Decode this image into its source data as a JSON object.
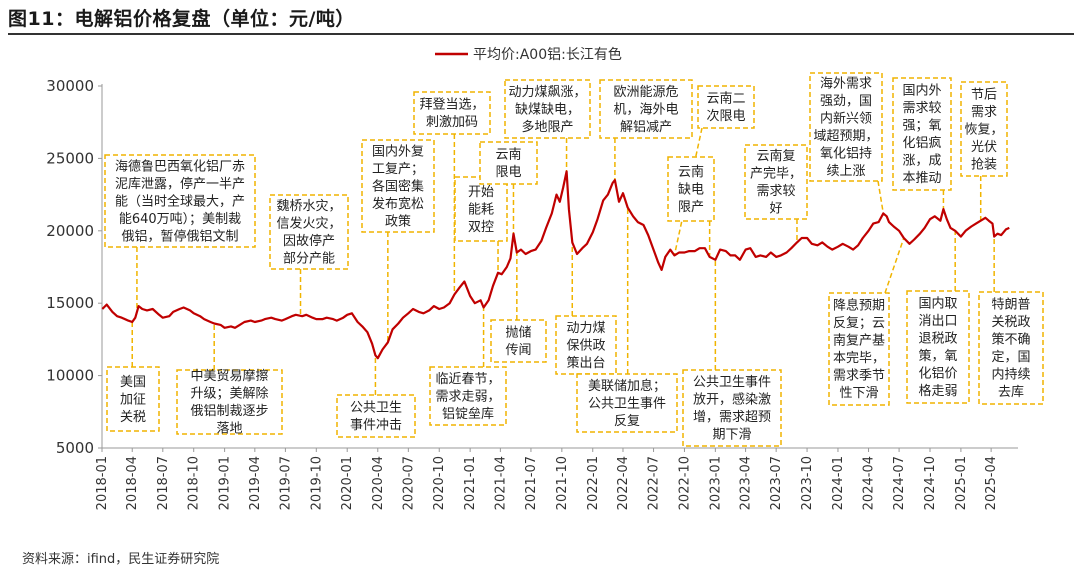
{
  "title": "图11：电解铝价格复盘（单位：元/吨）",
  "source": "资料来源：ifind，民生证券研究院",
  "colors": {
    "series": "#c00000",
    "annotation_border": "#f0b400",
    "axis": "#999999"
  },
  "chart_data": {
    "type": "line",
    "grid": false,
    "legend_position": "top-center",
    "ylim": [
      5000,
      30000
    ],
    "yticks": [
      "5000",
      "10000",
      "15000",
      "20000",
      "25000",
      "30000"
    ],
    "xticks": [
      "2018-01",
      "2018-04",
      "2018-07",
      "2018-10",
      "2019-01",
      "2019-04",
      "2019-07",
      "2019-10",
      "2020-01",
      "2020-04",
      "2020-07",
      "2020-10",
      "2021-01",
      "2021-04",
      "2021-07",
      "2021-10",
      "2022-01",
      "2022-04",
      "2022-07",
      "2022-10",
      "2023-01",
      "2023-04",
      "2023-07",
      "2023-10",
      "2024-01",
      "2024-04",
      "2024-07",
      "2024-10",
      "2025-01",
      "2025-04"
    ],
    "series": [
      {
        "name": "平均价:A00铝:长江有色",
        "color": "#c00000",
        "points": [
          [
            "2018-01-02",
            14600
          ],
          [
            "2018-01-15",
            14900
          ],
          [
            "2018-02-01",
            14400
          ],
          [
            "2018-02-15",
            14100
          ],
          [
            "2018-03-01",
            14000
          ],
          [
            "2018-03-20",
            13800
          ],
          [
            "2018-04-01",
            13700
          ],
          [
            "2018-04-10",
            14000
          ],
          [
            "2018-04-20",
            14800
          ],
          [
            "2018-05-01",
            14600
          ],
          [
            "2018-05-15",
            14500
          ],
          [
            "2018-06-01",
            14600
          ],
          [
            "2018-06-20",
            14200
          ],
          [
            "2018-07-01",
            14000
          ],
          [
            "2018-07-20",
            14100
          ],
          [
            "2018-08-01",
            14400
          ],
          [
            "2018-08-20",
            14600
          ],
          [
            "2018-09-01",
            14700
          ],
          [
            "2018-09-20",
            14500
          ],
          [
            "2018-10-01",
            14300
          ],
          [
            "2018-10-20",
            14100
          ],
          [
            "2018-11-01",
            13900
          ],
          [
            "2018-11-20",
            13700
          ],
          [
            "2018-12-01",
            13600
          ],
          [
            "2018-12-20",
            13500
          ],
          [
            "2019-01-01",
            13300
          ],
          [
            "2019-01-20",
            13400
          ],
          [
            "2019-02-01",
            13300
          ],
          [
            "2019-02-15",
            13500
          ],
          [
            "2019-03-01",
            13700
          ],
          [
            "2019-03-20",
            13800
          ],
          [
            "2019-04-01",
            13700
          ],
          [
            "2019-04-20",
            13800
          ],
          [
            "2019-05-01",
            13900
          ],
          [
            "2019-05-20",
            14000
          ],
          [
            "2019-06-01",
            13900
          ],
          [
            "2019-06-20",
            13800
          ],
          [
            "2019-07-01",
            13900
          ],
          [
            "2019-07-20",
            14100
          ],
          [
            "2019-08-01",
            14200
          ],
          [
            "2019-08-20",
            14100
          ],
          [
            "2019-09-01",
            14200
          ],
          [
            "2019-09-20",
            14000
          ],
          [
            "2019-10-01",
            13900
          ],
          [
            "2019-10-20",
            13900
          ],
          [
            "2019-11-01",
            14000
          ],
          [
            "2019-11-20",
            13900
          ],
          [
            "2019-12-01",
            13800
          ],
          [
            "2019-12-20",
            14000
          ],
          [
            "2020-01-01",
            14200
          ],
          [
            "2020-01-15",
            14300
          ],
          [
            "2020-02-01",
            13700
          ],
          [
            "2020-02-15",
            13400
          ],
          [
            "2020-03-01",
            13000
          ],
          [
            "2020-03-15",
            12200
          ],
          [
            "2020-03-25",
            11400
          ],
          [
            "2020-04-01",
            11200
          ],
          [
            "2020-04-15",
            11800
          ],
          [
            "2020-05-01",
            12300
          ],
          [
            "2020-05-15",
            13200
          ],
          [
            "2020-06-01",
            13600
          ],
          [
            "2020-06-15",
            14000
          ],
          [
            "2020-07-01",
            14300
          ],
          [
            "2020-07-15",
            14600
          ],
          [
            "2020-08-01",
            14400
          ],
          [
            "2020-08-15",
            14300
          ],
          [
            "2020-09-01",
            14500
          ],
          [
            "2020-09-15",
            14800
          ],
          [
            "2020-10-01",
            14600
          ],
          [
            "2020-10-15",
            14700
          ],
          [
            "2020-11-01",
            15000
          ],
          [
            "2020-11-15",
            15600
          ],
          [
            "2020-12-01",
            16100
          ],
          [
            "2020-12-15",
            16500
          ],
          [
            "2021-01-01",
            15500
          ],
          [
            "2021-01-15",
            15000
          ],
          [
            "2021-02-01",
            15200
          ],
          [
            "2021-02-10",
            14700
          ],
          [
            "2021-02-25",
            15200
          ],
          [
            "2021-03-10",
            16200
          ],
          [
            "2021-03-25",
            17100
          ],
          [
            "2021-04-05",
            17000
          ],
          [
            "2021-04-20",
            17500
          ],
          [
            "2021-05-01",
            18100
          ],
          [
            "2021-05-10",
            19800
          ],
          [
            "2021-05-20",
            18500
          ],
          [
            "2021-06-01",
            18700
          ],
          [
            "2021-06-15",
            18400
          ],
          [
            "2021-07-01",
            18600
          ],
          [
            "2021-07-15",
            18700
          ],
          [
            "2021-08-01",
            19300
          ],
          [
            "2021-08-15",
            20200
          ],
          [
            "2021-09-01",
            21200
          ],
          [
            "2021-09-15",
            22500
          ],
          [
            "2021-09-25",
            22000
          ],
          [
            "2021-10-05",
            23000
          ],
          [
            "2021-10-15",
            24100
          ],
          [
            "2021-10-22",
            21500
          ],
          [
            "2021-11-01",
            19200
          ],
          [
            "2021-11-15",
            18400
          ],
          [
            "2021-12-01",
            18800
          ],
          [
            "2021-12-15",
            19100
          ],
          [
            "2022-01-01",
            19900
          ],
          [
            "2022-01-15",
            20800
          ],
          [
            "2022-02-01",
            22100
          ],
          [
            "2022-02-15",
            22500
          ],
          [
            "2022-03-01",
            23300
          ],
          [
            "2022-03-08",
            23500
          ],
          [
            "2022-03-20",
            22000
          ],
          [
            "2022-04-01",
            22600
          ],
          [
            "2022-04-15",
            21600
          ],
          [
            "2022-05-01",
            21000
          ],
          [
            "2022-05-15",
            20600
          ],
          [
            "2022-06-01",
            20400
          ],
          [
            "2022-06-15",
            19700
          ],
          [
            "2022-07-01",
            18700
          ],
          [
            "2022-07-15",
            17800
          ],
          [
            "2022-07-25",
            17300
          ],
          [
            "2022-08-05",
            18200
          ],
          [
            "2022-08-20",
            18700
          ],
          [
            "2022-09-01",
            18300
          ],
          [
            "2022-09-15",
            18500
          ],
          [
            "2022-10-01",
            18500
          ],
          [
            "2022-10-15",
            18600
          ],
          [
            "2022-11-01",
            18600
          ],
          [
            "2022-11-15",
            18800
          ],
          [
            "2022-12-01",
            18800
          ],
          [
            "2022-12-15",
            18200
          ],
          [
            "2023-01-01",
            18000
          ],
          [
            "2023-01-15",
            18700
          ],
          [
            "2023-02-01",
            18600
          ],
          [
            "2023-02-15",
            18300
          ],
          [
            "2023-03-01",
            18300
          ],
          [
            "2023-03-15",
            18000
          ],
          [
            "2023-04-01",
            18700
          ],
          [
            "2023-04-15",
            18800
          ],
          [
            "2023-05-01",
            18200
          ],
          [
            "2023-05-15",
            18300
          ],
          [
            "2023-06-01",
            18200
          ],
          [
            "2023-06-15",
            18500
          ],
          [
            "2023-07-01",
            18200
          ],
          [
            "2023-07-15",
            18300
          ],
          [
            "2023-08-01",
            18500
          ],
          [
            "2023-08-15",
            18800
          ],
          [
            "2023-09-01",
            19200
          ],
          [
            "2023-09-15",
            19500
          ],
          [
            "2023-10-01",
            19500
          ],
          [
            "2023-10-15",
            19100
          ],
          [
            "2023-11-01",
            19000
          ],
          [
            "2023-11-15",
            19200
          ],
          [
            "2023-12-01",
            18900
          ],
          [
            "2023-12-15",
            18700
          ],
          [
            "2024-01-01",
            18900
          ],
          [
            "2024-01-15",
            19100
          ],
          [
            "2024-02-01",
            18900
          ],
          [
            "2024-02-15",
            18700
          ],
          [
            "2024-03-01",
            19000
          ],
          [
            "2024-03-15",
            19500
          ],
          [
            "2024-04-01",
            20000
          ],
          [
            "2024-04-15",
            20500
          ],
          [
            "2024-05-01",
            20600
          ],
          [
            "2024-05-15",
            21200
          ],
          [
            "2024-05-25",
            21000
          ],
          [
            "2024-06-01",
            20600
          ],
          [
            "2024-06-15",
            20300
          ],
          [
            "2024-07-01",
            20000
          ],
          [
            "2024-07-15",
            19500
          ],
          [
            "2024-08-01",
            19100
          ],
          [
            "2024-08-15",
            19400
          ],
          [
            "2024-09-01",
            19800
          ],
          [
            "2024-09-15",
            20200
          ],
          [
            "2024-10-01",
            20800
          ],
          [
            "2024-10-15",
            21000
          ],
          [
            "2024-11-01",
            20700
          ],
          [
            "2024-11-10",
            21500
          ],
          [
            "2024-11-20",
            20800
          ],
          [
            "2024-12-01",
            20200
          ],
          [
            "2024-12-15",
            20000
          ],
          [
            "2025-01-01",
            19600
          ],
          [
            "2025-01-15",
            20000
          ],
          [
            "2025-02-01",
            20300
          ],
          [
            "2025-02-15",
            20500
          ],
          [
            "2025-03-01",
            20700
          ],
          [
            "2025-03-15",
            20900
          ],
          [
            "2025-03-25",
            20700
          ],
          [
            "2025-04-05",
            20500
          ],
          [
            "2025-04-10",
            19600
          ],
          [
            "2025-04-20",
            19800
          ],
          [
            "2025-05-01",
            19700
          ],
          [
            "2025-05-15",
            20100
          ],
          [
            "2025-05-25",
            20200
          ]
        ]
      }
    ],
    "annotations": [
      {
        "text": [
          "美国",
          "加征",
          "关税"
        ],
        "date": "2018-04-01"
      },
      {
        "text": [
          "海德鲁巴西氧化铝厂赤",
          "泥库泄露，停产一半产",
          "能（当时全球最大，产",
          "能640万吨）；美制裁",
          "俄铝，暂停俄铝文制"
        ],
        "date": "2018-04-15"
      },
      {
        "text": [
          "中美贸易摩擦",
          "升级；美解除",
          "俄铝制裁逐步",
          "落地"
        ],
        "date": "2018-12-01"
      },
      {
        "text": [
          "魏桥水灾，",
          "信发火灾，",
          "因故停产",
          "部分产能"
        ],
        "date": "2019-08-15"
      },
      {
        "text": [
          "公共卫生",
          "事件冲击"
        ],
        "date": "2020-03-25"
      },
      {
        "text": [
          "国内外复",
          "工复产；",
          "各国密集",
          "发布宽松",
          "政策"
        ],
        "date": "2020-05-01"
      },
      {
        "text": [
          "拜登当选，",
          "刺激加码"
        ],
        "date": "2020-11-15"
      },
      {
        "text": [
          "临近春节，",
          "需求走弱，",
          "铝锭垒库"
        ],
        "date": "2021-02-10"
      },
      {
        "text": [
          "开始",
          "能耗",
          "双控"
        ],
        "date": "2021-03-25"
      },
      {
        "text": [
          "云南",
          "限电"
        ],
        "date": "2021-05-10"
      },
      {
        "text": [
          "抛储",
          "传闻"
        ],
        "date": "2021-05-20"
      },
      {
        "text": [
          "动力煤飙涨，",
          "缺煤缺电，",
          "多地限产"
        ],
        "date": "2021-10-15"
      },
      {
        "text": [
          "动力煤",
          "保供政",
          "策出台"
        ],
        "date": "2021-11-01"
      },
      {
        "text": [
          "欧洲能源危",
          "机，海外电",
          "解铝减产"
        ],
        "date": "2022-03-08"
      },
      {
        "text": [
          "美联储加息；",
          "公共卫生事件",
          "反复"
        ],
        "date": "2022-04-15"
      },
      {
        "text": [
          "云南二",
          "次限电"
        ],
        "date": "2022-09-01"
      },
      {
        "text": [
          "云南",
          "缺电",
          "限产"
        ],
        "date": "2022-12-15"
      },
      {
        "text": [
          "公共卫生事件",
          "放开，感染激",
          "增，需求超预",
          "期下滑"
        ],
        "date": "2023-01-01"
      },
      {
        "text": [
          "云南复",
          "产完毕，",
          "需求较",
          "好"
        ],
        "date": "2023-09-01"
      },
      {
        "text": [
          "海外需求",
          "强劲，国",
          "内新兴领",
          "域超预期，",
          "氧化铝持",
          "续上涨"
        ],
        "date": "2024-05-15"
      },
      {
        "text": [
          "降息预期",
          "反复；云",
          "南复产基",
          "本完毕，",
          "需求季节",
          "性下滑"
        ],
        "date": "2024-07-15"
      },
      {
        "text": [
          "国内外",
          "需求较",
          "强；氧",
          "化铝疯",
          "涨，成",
          "本推动"
        ],
        "date": "2024-11-10"
      },
      {
        "text": [
          "国内取",
          "消出口",
          "退税政",
          "策，氧",
          "化铝价",
          "格走弱"
        ],
        "date": "2024-12-15"
      },
      {
        "text": [
          "节后",
          "需求",
          "恢复，",
          "光伏",
          "抢装"
        ],
        "date": "2025-03-01"
      },
      {
        "text": [
          "特朗普",
          "关税政",
          "策不确",
          "定，国",
          "内持续",
          "去库"
        ],
        "date": "2025-04-10"
      }
    ]
  }
}
